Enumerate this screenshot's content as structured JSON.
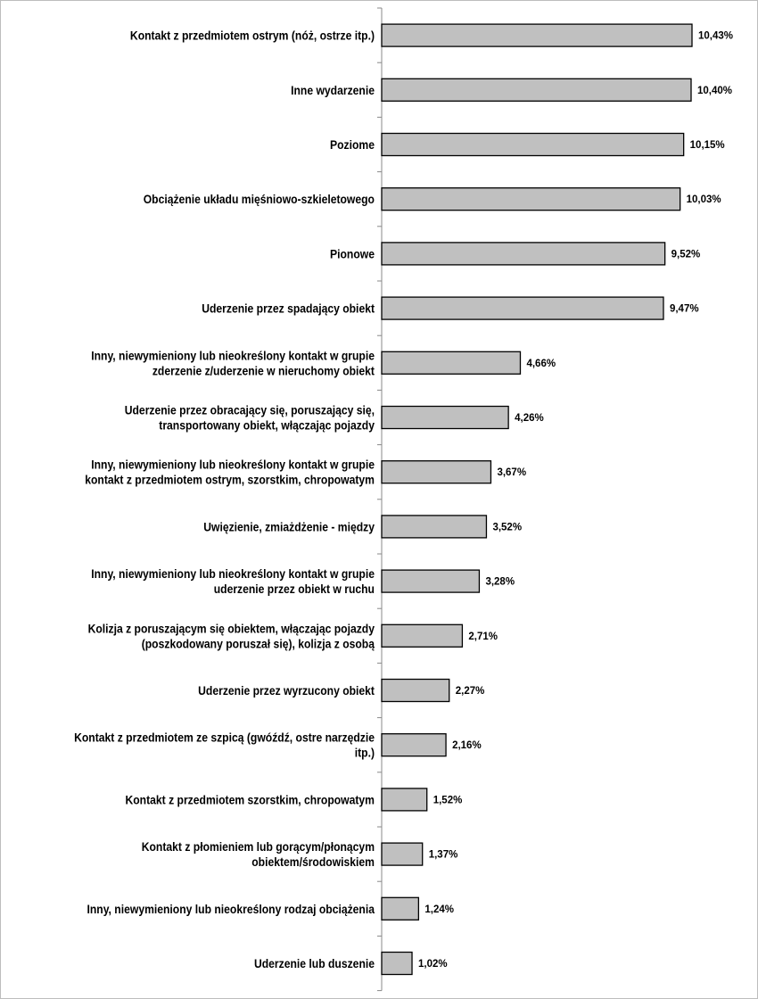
{
  "chart_data": {
    "type": "bar",
    "orientation": "horizontal",
    "title": "",
    "xlabel": "",
    "ylabel": "",
    "xlim": [
      0,
      10.43
    ],
    "grid": false,
    "bar_color": "#c0c0c0",
    "categories": [
      [
        "Kontakt z przedmiotem ostrym (nóż, ostrze itp.)"
      ],
      [
        "Inne wydarzenie"
      ],
      [
        "Poziome"
      ],
      [
        "Obciążenie układu mięśniowo-szkieletowego"
      ],
      [
        "Pionowe"
      ],
      [
        "Uderzenie przez spadający obiekt"
      ],
      [
        "Inny, niewymieniony lub nieokreślony kontakt w grupie",
        "zderzenie z/uderzenie w nieruchomy obiekt"
      ],
      [
        "Uderzenie przez obracający się, poruszający się,",
        "transportowany obiekt, włączając pojazdy"
      ],
      [
        "Inny, niewymieniony lub nieokreślony kontakt w grupie",
        "kontakt z przedmiotem ostrym, szorstkim, chropowatym"
      ],
      [
        "Uwięzienie, zmiażdżenie - między"
      ],
      [
        "Inny, niewymieniony lub nieokreślony kontakt w grupie",
        "uderzenie przez obiekt w ruchu"
      ],
      [
        "Kolizja z poruszającym się obiektem, włączając pojazdy",
        "(poszkodowany poruszał się), kolizja z osobą"
      ],
      [
        "Uderzenie przez wyrzucony obiekt"
      ],
      [
        "Kontakt z przedmiotem ze szpicą (gwóźdź, ostre narzędzie",
        "itp.)"
      ],
      [
        "Kontakt z przedmiotem szorstkim, chropowatym"
      ],
      [
        "Kontakt z płomieniem lub gorącym/płonącym",
        "obiektem/środowiskiem"
      ],
      [
        "Inny, niewymieniony lub nieokreślony rodzaj obciążenia"
      ],
      [
        "Uderzenie lub duszenie"
      ]
    ],
    "values": [
      10.43,
      10.4,
      10.15,
      10.03,
      9.52,
      9.47,
      4.66,
      4.26,
      3.67,
      3.52,
      3.28,
      2.71,
      2.27,
      2.16,
      1.52,
      1.37,
      1.24,
      1.02
    ],
    "value_labels": [
      "10,43%",
      "10,40%",
      "10,15%",
      "10,03%",
      "9,52%",
      "9,47%",
      "4,66%",
      "4,26%",
      "3,67%",
      "3,52%",
      "3,28%",
      "2,71%",
      "2,27%",
      "2,16%",
      "1,52%",
      "1,37%",
      "1,24%",
      "1,02%"
    ]
  }
}
